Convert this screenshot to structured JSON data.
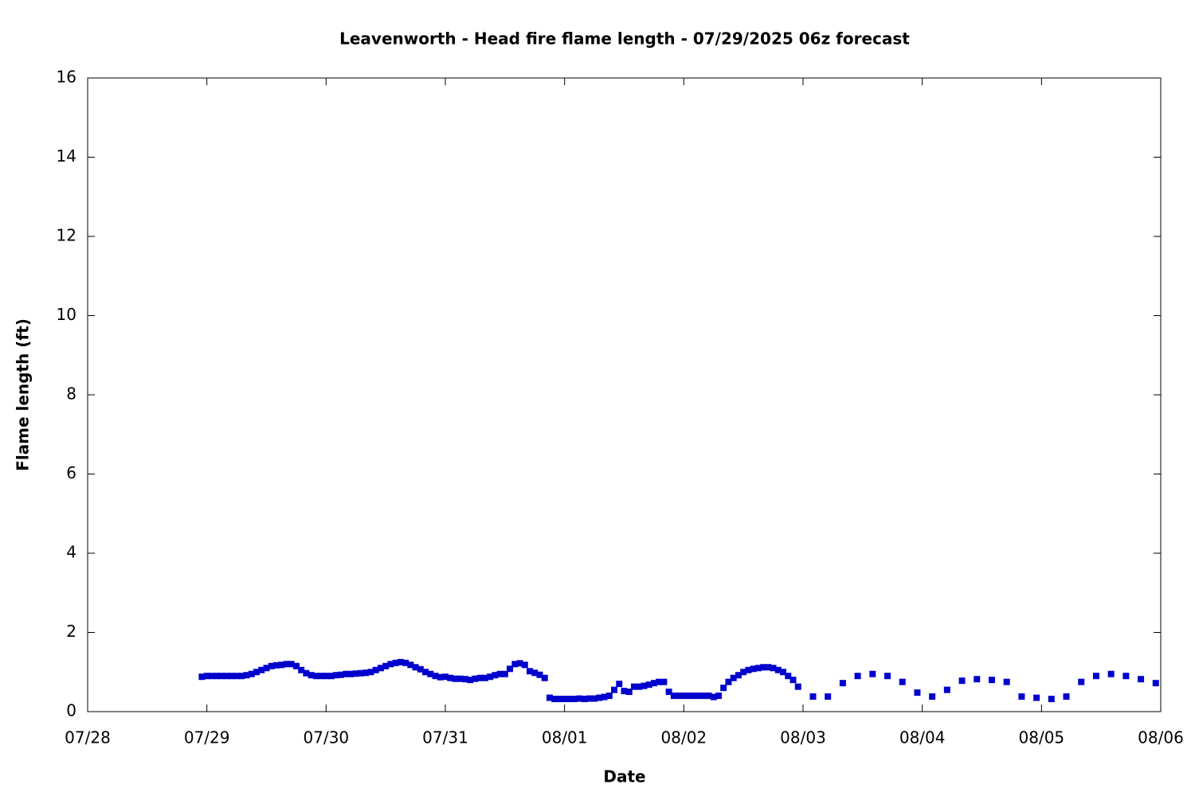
{
  "chart_data": {
    "type": "scatter",
    "title": "Leavenworth - Head fire flame length - 07/29/2025 06z forecast",
    "xlabel": "Date",
    "ylabel": "Flame length (ft)",
    "color": "#0000cc",
    "x": [
      "07/28 23:00",
      "07/29 00:00",
      "07/29 01:00",
      "07/29 02:00",
      "07/29 03:00",
      "07/29 04:00",
      "07/29 05:00",
      "07/29 06:00",
      "07/29 07:00",
      "07/29 08:00",
      "07/29 09:00",
      "07/29 10:00",
      "07/29 11:00",
      "07/29 12:00",
      "07/29 13:00",
      "07/29 14:00",
      "07/29 15:00",
      "07/29 16:00",
      "07/29 17:00",
      "07/29 18:00",
      "07/29 19:00",
      "07/29 20:00",
      "07/29 21:00",
      "07/29 22:00",
      "07/29 23:00",
      "07/30 00:00",
      "07/30 01:00",
      "07/30 02:00",
      "07/30 03:00",
      "07/30 04:00",
      "07/30 05:00",
      "07/30 06:00",
      "07/30 07:00",
      "07/30 08:00",
      "07/30 09:00",
      "07/30 10:00",
      "07/30 11:00",
      "07/30 12:00",
      "07/30 13:00",
      "07/30 14:00",
      "07/30 15:00",
      "07/30 16:00",
      "07/30 17:00",
      "07/30 18:00",
      "07/30 19:00",
      "07/30 20:00",
      "07/30 21:00",
      "07/30 22:00",
      "07/30 23:00",
      "07/31 00:00",
      "07/31 01:00",
      "07/31 02:00",
      "07/31 03:00",
      "07/31 04:00",
      "07/31 05:00",
      "07/31 06:00",
      "07/31 07:00",
      "07/31 08:00",
      "07/31 09:00",
      "07/31 10:00",
      "07/31 11:00",
      "07/31 12:00",
      "07/31 13:00",
      "07/31 14:00",
      "07/31 15:00",
      "07/31 16:00",
      "07/31 17:00",
      "07/31 18:00",
      "07/31 19:00",
      "07/31 20:00",
      "07/31 21:00",
      "07/31 22:00",
      "07/31 23:00",
      "08/01 00:00",
      "08/01 01:00",
      "08/01 02:00",
      "08/01 03:00",
      "08/01 04:00",
      "08/01 05:00",
      "08/01 06:00",
      "08/01 07:00",
      "08/01 08:00",
      "08/01 09:00",
      "08/01 10:00",
      "08/01 11:00",
      "08/01 12:00",
      "08/01 13:00",
      "08/01 14:00",
      "08/01 15:00",
      "08/01 16:00",
      "08/01 17:00",
      "08/01 18:00",
      "08/01 19:00",
      "08/01 20:00",
      "08/01 21:00",
      "08/01 22:00",
      "08/01 23:00",
      "08/02 00:00",
      "08/02 01:00",
      "08/02 02:00",
      "08/02 03:00",
      "08/02 04:00",
      "08/02 05:00",
      "08/02 06:00",
      "08/02 07:00",
      "08/02 08:00",
      "08/02 09:00",
      "08/02 10:00",
      "08/02 11:00",
      "08/02 12:00",
      "08/02 13:00",
      "08/02 14:00",
      "08/02 15:00",
      "08/02 16:00",
      "08/02 17:00",
      "08/02 18:00",
      "08/02 19:00",
      "08/02 20:00",
      "08/02 21:00",
      "08/02 22:00",
      "08/02 23:00",
      "08/03 02:00",
      "08/03 05:00",
      "08/03 08:00",
      "08/03 11:00",
      "08/03 14:00",
      "08/03 17:00",
      "08/03 20:00",
      "08/03 23:00",
      "08/04 02:00",
      "08/04 05:00",
      "08/04 08:00",
      "08/04 11:00",
      "08/04 14:00",
      "08/04 17:00",
      "08/04 20:00",
      "08/04 23:00",
      "08/05 02:00",
      "08/05 05:00",
      "08/05 08:00",
      "08/05 11:00",
      "08/05 14:00",
      "08/05 17:00",
      "08/05 20:00",
      "08/05 23:00"
    ],
    "values": [
      0.88,
      0.9,
      0.9,
      0.9,
      0.9,
      0.9,
      0.9,
      0.9,
      0.9,
      0.92,
      0.95,
      1.0,
      1.05,
      1.1,
      1.15,
      1.17,
      1.18,
      1.2,
      1.2,
      1.15,
      1.05,
      0.97,
      0.92,
      0.9,
      0.9,
      0.9,
      0.9,
      0.92,
      0.93,
      0.95,
      0.95,
      0.96,
      0.97,
      0.98,
      1.0,
      1.05,
      1.1,
      1.15,
      1.2,
      1.23,
      1.25,
      1.23,
      1.18,
      1.12,
      1.07,
      1.0,
      0.95,
      0.9,
      0.87,
      0.88,
      0.85,
      0.83,
      0.83,
      0.82,
      0.8,
      0.83,
      0.85,
      0.85,
      0.88,
      0.92,
      0.95,
      0.95,
      1.08,
      1.2,
      1.22,
      1.18,
      1.02,
      0.98,
      0.93,
      0.85,
      0.35,
      0.32,
      0.32,
      0.32,
      0.32,
      0.32,
      0.33,
      0.32,
      0.33,
      0.33,
      0.35,
      0.37,
      0.4,
      0.55,
      0.7,
      0.52,
      0.5,
      0.63,
      0.63,
      0.65,
      0.68,
      0.72,
      0.75,
      0.75,
      0.5,
      0.4,
      0.4,
      0.4,
      0.4,
      0.4,
      0.4,
      0.4,
      0.4,
      0.37,
      0.4,
      0.6,
      0.75,
      0.85,
      0.92,
      1.0,
      1.05,
      1.08,
      1.1,
      1.12,
      1.12,
      1.1,
      1.05,
      1.0,
      0.9,
      0.8,
      0.63,
      0.38,
      0.38,
      0.72,
      0.9,
      0.95,
      0.9,
      0.75,
      0.48,
      0.38,
      0.55,
      0.78,
      0.82,
      0.8,
      0.75,
      0.38,
      0.35,
      0.32,
      0.38,
      0.75,
      0.9,
      0.95,
      0.9,
      0.82,
      0.72
    ],
    "xlim": [
      "07/28",
      "08/06"
    ],
    "xticks": [
      "07/28",
      "07/29",
      "07/30",
      "07/31",
      "08/01",
      "08/02",
      "08/03",
      "08/04",
      "08/05",
      "08/06"
    ],
    "ylim": [
      0,
      16
    ],
    "yticks": [
      0,
      2,
      4,
      6,
      8,
      10,
      12,
      14,
      16
    ],
    "grid": false
  }
}
